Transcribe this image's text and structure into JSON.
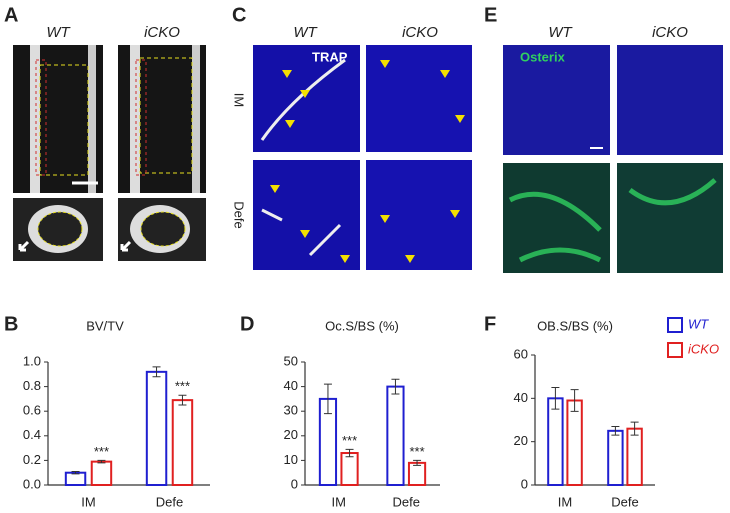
{
  "panels": [
    {
      "letter": "A",
      "columns": [
        "WT",
        "iCKO"
      ]
    },
    {
      "letter": "C",
      "columns": [
        "WT",
        "iCKO"
      ],
      "rows": [
        "IM",
        "Defe"
      ],
      "stain": "TRAP"
    },
    {
      "letter": "E",
      "columns": [
        "WT",
        "iCKO"
      ],
      "stain": "Osterix"
    }
  ],
  "chart_data": [
    {
      "type": "bar",
      "letter": "B",
      "title": "BV/TV",
      "categories": [
        "IM",
        "Defe"
      ],
      "series": [
        {
          "color": "#1f1fd0",
          "values": [
            0.1,
            0.92
          ],
          "errors": [
            0.01,
            0.04
          ]
        },
        {
          "color": "#e02020",
          "values": [
            0.19,
            0.69
          ],
          "errors": [
            0.01,
            0.04
          ],
          "significance": [
            "***",
            "***"
          ]
        }
      ],
      "ylim": [
        0,
        1.0
      ],
      "yticks": [
        {
          "value": 0,
          "label": "0.0"
        },
        {
          "value": 0.2,
          "label": "0.2"
        },
        {
          "value": 0.4,
          "label": "0.4"
        },
        {
          "value": 0.6,
          "label": "0.6"
        },
        {
          "value": 0.8,
          "label": "0.8"
        },
        {
          "value": 1.0,
          "label": "1.0"
        }
      ]
    },
    {
      "type": "bar",
      "letter": "D",
      "title": "Oc.S/BS (%)",
      "categories": [
        "IM",
        "Defe"
      ],
      "series": [
        {
          "color": "#1f1fd0",
          "values": [
            35,
            40
          ],
          "errors": [
            6,
            3
          ]
        },
        {
          "color": "#e02020",
          "values": [
            13,
            9
          ],
          "errors": [
            1.5,
            1
          ],
          "significance": [
            "***",
            "***"
          ]
        }
      ],
      "ylim": [
        0,
        50
      ],
      "yticks": [
        0,
        10,
        20,
        30,
        40,
        50
      ]
    },
    {
      "type": "bar",
      "letter": "F",
      "title": "OB.S/BS (%)",
      "categories": [
        "IM",
        "Defe"
      ],
      "series": [
        {
          "name": "WT",
          "color": "#1f1fd0",
          "values": [
            40,
            25
          ],
          "errors": [
            5,
            2
          ]
        },
        {
          "name": "iCKO",
          "color": "#e02020",
          "values": [
            39,
            26
          ],
          "errors": [
            5,
            3
          ]
        }
      ],
      "ylim": [
        0,
        60
      ],
      "yticks": [
        0,
        20,
        40,
        60
      ]
    }
  ]
}
